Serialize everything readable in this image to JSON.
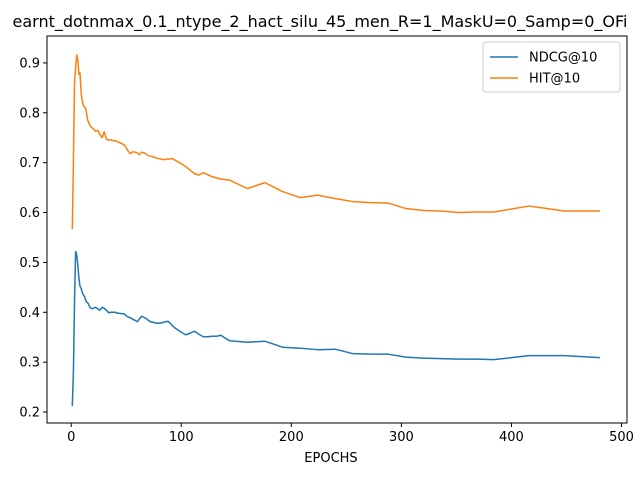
{
  "chart_data": {
    "type": "line",
    "title": "earnt_dotnmax_0.1_ntype_2_hact_silu_45_men_R=1_MaskU=0_Samp=0_OFi",
    "xlabel": "EPOCHS",
    "ylabel": "",
    "xlim": [
      -22,
      505
    ],
    "ylim": [
      0.178,
      0.954
    ],
    "x_ticks": [
      0,
      100,
      200,
      300,
      400,
      500
    ],
    "y_ticks": [
      0.2,
      0.3,
      0.4,
      0.5,
      0.6,
      0.7,
      0.8,
      0.9
    ],
    "legend_position": "top-right",
    "grid": false,
    "series": [
      {
        "name": "NDCG@10",
        "color": "#1f77b4",
        "x": [
          1,
          2,
          3,
          4,
          5,
          6,
          7,
          8,
          9,
          10,
          11,
          12,
          13,
          14,
          15,
          16,
          17,
          18,
          19,
          20,
          22,
          24,
          26,
          28,
          30,
          32,
          34,
          36,
          38,
          40,
          42,
          44,
          46,
          48,
          50,
          52,
          54,
          56,
          58,
          60,
          62,
          64,
          66,
          68,
          70,
          72,
          74,
          76,
          78,
          80,
          82,
          84,
          86,
          88,
          90,
          92,
          94,
          96,
          98,
          100,
          104,
          108,
          112,
          116,
          120,
          124,
          128,
          132,
          136,
          140,
          144,
          160,
          176,
          192,
          208,
          224,
          240,
          256,
          272,
          288,
          304,
          320,
          336,
          352,
          368,
          384,
          400,
          416,
          432,
          448,
          464,
          480
        ],
        "y": [
          0.213,
          0.28,
          0.42,
          0.522,
          0.515,
          0.495,
          0.468,
          0.452,
          0.448,
          0.44,
          0.435,
          0.432,
          0.425,
          0.42,
          0.419,
          0.415,
          0.41,
          0.408,
          0.407,
          0.408,
          0.41,
          0.407,
          0.404,
          0.41,
          0.408,
          0.404,
          0.399,
          0.4,
          0.4,
          0.4,
          0.398,
          0.398,
          0.397,
          0.397,
          0.393,
          0.39,
          0.389,
          0.386,
          0.384,
          0.381,
          0.387,
          0.392,
          0.39,
          0.388,
          0.384,
          0.381,
          0.38,
          0.379,
          0.378,
          0.378,
          0.379,
          0.38,
          0.381,
          0.382,
          0.378,
          0.373,
          0.369,
          0.366,
          0.363,
          0.36,
          0.355,
          0.358,
          0.362,
          0.356,
          0.351,
          0.351,
          0.352,
          0.352,
          0.354,
          0.348,
          0.343,
          0.34,
          0.342,
          0.33,
          0.328,
          0.325,
          0.326,
          0.317,
          0.316,
          0.316,
          0.31,
          0.308,
          0.307,
          0.306,
          0.306,
          0.305,
          0.309,
          0.313,
          0.313,
          0.313,
          0.311,
          0.309
        ]
      },
      {
        "name": "HIT@10",
        "color": "#ff7f0e",
        "x": [
          1,
          2,
          3,
          4,
          5,
          6,
          7,
          8,
          9,
          10,
          11,
          12,
          13,
          14,
          15,
          16,
          17,
          18,
          19,
          20,
          22,
          24,
          26,
          28,
          30,
          32,
          34,
          36,
          38,
          40,
          42,
          44,
          46,
          48,
          50,
          52,
          54,
          56,
          58,
          60,
          62,
          64,
          66,
          68,
          70,
          72,
          74,
          76,
          78,
          80,
          84,
          88,
          92,
          96,
          100,
          104,
          108,
          112,
          116,
          120,
          128,
          136,
          144,
          160,
          176,
          192,
          208,
          224,
          240,
          256,
          272,
          288,
          304,
          320,
          336,
          352,
          368,
          384,
          400,
          416,
          432,
          448,
          464,
          480
        ],
        "y": [
          0.568,
          0.7,
          0.86,
          0.89,
          0.916,
          0.905,
          0.877,
          0.88,
          0.84,
          0.825,
          0.815,
          0.812,
          0.81,
          0.798,
          0.785,
          0.78,
          0.775,
          0.772,
          0.77,
          0.768,
          0.763,
          0.765,
          0.757,
          0.75,
          0.762,
          0.747,
          0.745,
          0.746,
          0.744,
          0.744,
          0.742,
          0.74,
          0.738,
          0.736,
          0.73,
          0.722,
          0.718,
          0.722,
          0.721,
          0.72,
          0.716,
          0.721,
          0.72,
          0.717,
          0.714,
          0.713,
          0.712,
          0.71,
          0.709,
          0.708,
          0.706,
          0.707,
          0.708,
          0.703,
          0.698,
          0.692,
          0.685,
          0.678,
          0.675,
          0.68,
          0.672,
          0.667,
          0.665,
          0.648,
          0.66,
          0.642,
          0.63,
          0.635,
          0.628,
          0.622,
          0.62,
          0.619,
          0.608,
          0.604,
          0.603,
          0.6,
          0.601,
          0.601,
          0.607,
          0.613,
          0.608,
          0.603,
          0.603,
          0.603
        ]
      }
    ]
  }
}
